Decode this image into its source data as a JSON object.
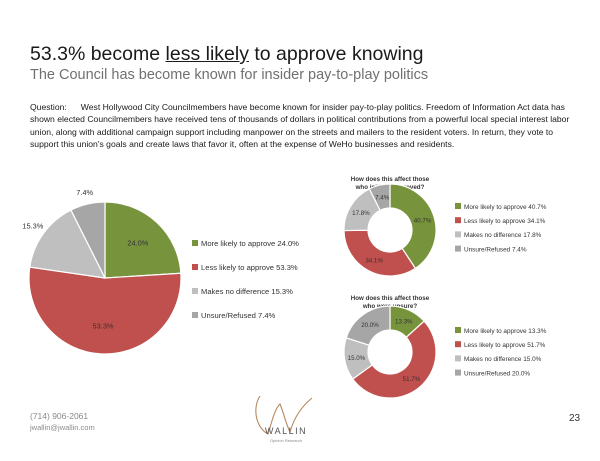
{
  "slide": {
    "title_pre": "53.3% become ",
    "title_underlined": "less likely",
    "title_post": " to approve knowing",
    "subtitle": "The Council has become known for insider pay-to-play politics",
    "question_label": "Question:",
    "question_text": "West Hollywood City Councilmembers have become known for insider pay-to-play politics. Freedom of Information Act data has shown elected Councilmembers have received tens of thousands of dollars in political contributions from a powerful local special interest labor union, along with additional campaign support including manpower on the streets and mailers to the resident voters. In return, they vote to support this union's goals and create laws that favor it, often at the expense of WeHo businesses and residents.",
    "footer_phone": "(714) 906-2061",
    "footer_email": "jwallin@jwallin.com",
    "page_number": "23",
    "logo_text": "WALLIN",
    "logo_subtext": "Opinion Research"
  },
  "colors": {
    "more": "#77933c",
    "less": "#c0504d",
    "nodiff": "#bfbfbf",
    "unsure": "#a6a6a6"
  },
  "chart_data": [
    {
      "type": "pie",
      "title": "",
      "categories": [
        "More likely to approve",
        "Less likely to approve",
        "Makes no difference",
        "Unsure/Refused"
      ],
      "values": [
        24.0,
        53.3,
        15.3,
        7.4
      ],
      "data_labels": [
        "24.0%",
        "53.3%",
        "15.3%",
        "7.4%"
      ],
      "legend": [
        "More likely to approve 24.0%",
        "Less likely to approve 53.3%",
        "Makes no difference 15.3%",
        "Unsure/Refused 7.4%"
      ],
      "legend_position": "right"
    },
    {
      "type": "pie",
      "style": "donut",
      "title_lines": [
        "How does this affect those",
        "who initially approved?"
      ],
      "categories": [
        "More likely to approve",
        "Less likely to approve",
        "Makes no difference",
        "Unsure/Refused"
      ],
      "values": [
        40.7,
        34.1,
        17.8,
        7.4
      ],
      "data_labels": [
        "40.7%",
        "34.1%",
        "17.8%",
        "7.4%"
      ],
      "legend": [
        "More likely to approve 40.7%",
        "Less likely to approve 34.1%",
        "Makes no difference 17.8%",
        "Unsure/Refused 7.4%"
      ],
      "legend_position": "right"
    },
    {
      "type": "pie",
      "style": "donut",
      "title_lines": [
        "How does this affect those",
        "who were unsure?"
      ],
      "categories": [
        "More likely to approve",
        "Less likely to approve",
        "Makes no difference",
        "Unsure/Refused"
      ],
      "values": [
        13.3,
        51.7,
        15.0,
        20.0
      ],
      "data_labels": [
        "13.3%",
        "51.7%",
        "15.0%",
        "20.0%"
      ],
      "legend": [
        "More likely to approve 13.3%",
        "Less likely to approve 51.7%",
        "Makes no difference 15.0%",
        "Unsure/Refused 20.0%"
      ],
      "legend_position": "right"
    }
  ]
}
